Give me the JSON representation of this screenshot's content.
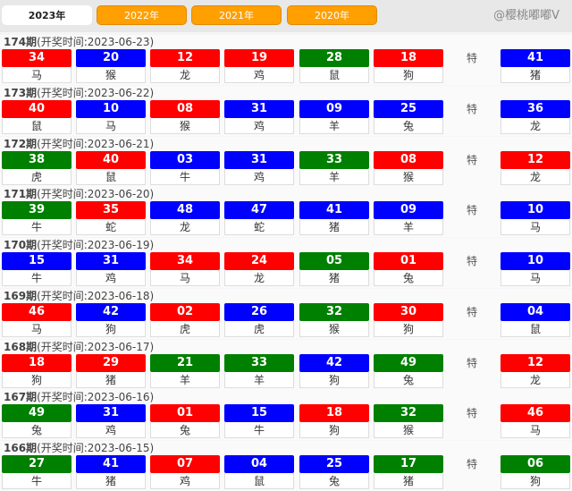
{
  "tabs": [
    "2023年",
    "2022年",
    "2021年",
    "2020年"
  ],
  "colors": {
    "red": "#ff0000",
    "blue": "#0000ff",
    "green": "#008000"
  },
  "special_label": "特",
  "watermark": "@樱桃嘟嘟V",
  "draws": [
    {
      "period": "174期",
      "time": "(开奖时间:2023-06-23)",
      "balls": [
        [
          "34",
          "马",
          "red"
        ],
        [
          "20",
          "猴",
          "blue"
        ],
        [
          "12",
          "龙",
          "red"
        ],
        [
          "19",
          "鸡",
          "red"
        ],
        [
          "28",
          "鼠",
          "green"
        ],
        [
          "18",
          "狗",
          "red"
        ]
      ],
      "special": [
        "41",
        "猪",
        "blue"
      ]
    },
    {
      "period": "173期",
      "time": "(开奖时间:2023-06-22)",
      "balls": [
        [
          "40",
          "鼠",
          "red"
        ],
        [
          "10",
          "马",
          "blue"
        ],
        [
          "08",
          "猴",
          "red"
        ],
        [
          "31",
          "鸡",
          "blue"
        ],
        [
          "09",
          "羊",
          "blue"
        ],
        [
          "25",
          "兔",
          "blue"
        ]
      ],
      "special": [
        "36",
        "龙",
        "blue"
      ]
    },
    {
      "period": "172期",
      "time": "(开奖时间:2023-06-21)",
      "balls": [
        [
          "38",
          "虎",
          "green"
        ],
        [
          "40",
          "鼠",
          "red"
        ],
        [
          "03",
          "牛",
          "blue"
        ],
        [
          "31",
          "鸡",
          "blue"
        ],
        [
          "33",
          "羊",
          "green"
        ],
        [
          "08",
          "猴",
          "red"
        ]
      ],
      "special": [
        "12",
        "龙",
        "red"
      ]
    },
    {
      "period": "171期",
      "time": "(开奖时间:2023-06-20)",
      "balls": [
        [
          "39",
          "牛",
          "green"
        ],
        [
          "35",
          "蛇",
          "red"
        ],
        [
          "48",
          "龙",
          "blue"
        ],
        [
          "47",
          "蛇",
          "blue"
        ],
        [
          "41",
          "猪",
          "blue"
        ],
        [
          "09",
          "羊",
          "blue"
        ]
      ],
      "special": [
        "10",
        "马",
        "blue"
      ]
    },
    {
      "period": "170期",
      "time": "(开奖时间:2023-06-19)",
      "balls": [
        [
          "15",
          "牛",
          "blue"
        ],
        [
          "31",
          "鸡",
          "blue"
        ],
        [
          "34",
          "马",
          "red"
        ],
        [
          "24",
          "龙",
          "red"
        ],
        [
          "05",
          "猪",
          "green"
        ],
        [
          "01",
          "兔",
          "red"
        ]
      ],
      "special": [
        "10",
        "马",
        "blue"
      ]
    },
    {
      "period": "169期",
      "time": "(开奖时间:2023-06-18)",
      "balls": [
        [
          "46",
          "马",
          "red"
        ],
        [
          "42",
          "狗",
          "blue"
        ],
        [
          "02",
          "虎",
          "red"
        ],
        [
          "26",
          "虎",
          "blue"
        ],
        [
          "32",
          "猴",
          "green"
        ],
        [
          "30",
          "狗",
          "red"
        ]
      ],
      "special": [
        "04",
        "鼠",
        "blue"
      ]
    },
    {
      "period": "168期",
      "time": "(开奖时间:2023-06-17)",
      "balls": [
        [
          "18",
          "狗",
          "red"
        ],
        [
          "29",
          "猪",
          "red"
        ],
        [
          "21",
          "羊",
          "green"
        ],
        [
          "33",
          "羊",
          "green"
        ],
        [
          "42",
          "狗",
          "blue"
        ],
        [
          "49",
          "兔",
          "green"
        ]
      ],
      "special": [
        "12",
        "龙",
        "red"
      ]
    },
    {
      "period": "167期",
      "time": "(开奖时间:2023-06-16)",
      "balls": [
        [
          "49",
          "兔",
          "green"
        ],
        [
          "31",
          "鸡",
          "blue"
        ],
        [
          "01",
          "兔",
          "red"
        ],
        [
          "15",
          "牛",
          "blue"
        ],
        [
          "18",
          "狗",
          "red"
        ],
        [
          "32",
          "猴",
          "green"
        ]
      ],
      "special": [
        "46",
        "马",
        "red"
      ]
    },
    {
      "period": "166期",
      "time": "(开奖时间:2023-06-15)",
      "balls": [
        [
          "27",
          "牛",
          "green"
        ],
        [
          "41",
          "猪",
          "blue"
        ],
        [
          "07",
          "鸡",
          "red"
        ],
        [
          "04",
          "鼠",
          "blue"
        ],
        [
          "25",
          "兔",
          "blue"
        ],
        [
          "17",
          "猪",
          "green"
        ]
      ],
      "special": [
        "06",
        "狗",
        "green"
      ]
    }
  ]
}
